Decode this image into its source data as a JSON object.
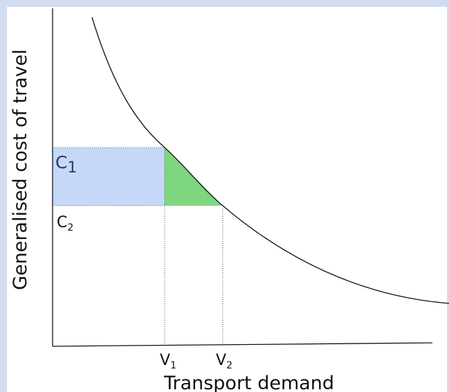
{
  "axes": {
    "y_label": "Generalised cost of travel",
    "x_label": "Transport demand"
  },
  "labels": {
    "c1": {
      "base": "C",
      "sub": "1"
    },
    "c2": {
      "base": "C",
      "sub": "2"
    },
    "v1": {
      "base": "V",
      "sub": "1"
    },
    "v2": {
      "base": "V",
      "sub": "2"
    }
  }
}
